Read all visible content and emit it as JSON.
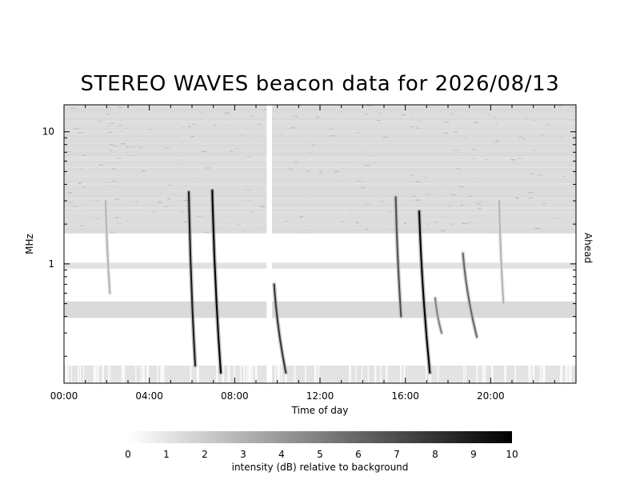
{
  "chart_data": {
    "type": "heatmap",
    "title": "STEREO WAVES beacon data for 2026/08/13",
    "xlabel": "Time of day",
    "ylabel": "MHz",
    "right_label": "Ahead",
    "right_label_color": "#cc0000",
    "x_unit": "hours",
    "xlim": [
      0,
      24
    ],
    "x_ticks": [
      {
        "value": 0,
        "label": "00:00"
      },
      {
        "value": 4,
        "label": "04:00"
      },
      {
        "value": 8,
        "label": "08:00"
      },
      {
        "value": 12,
        "label": "12:00"
      },
      {
        "value": 16,
        "label": "16:00"
      },
      {
        "value": 20,
        "label": "20:00"
      }
    ],
    "y_scale": "log",
    "ylim_mhz": [
      0.125,
      16
    ],
    "y_ticks": [
      {
        "value": 1,
        "label": "1"
      },
      {
        "value": 10,
        "label": "10"
      }
    ],
    "data_gap_hours": [
      9.5,
      9.75
    ],
    "background_bands": [
      {
        "f_low_mhz": 1.7,
        "f_high_mhz": 16,
        "intensity_db": 1.5
      },
      {
        "f_low_mhz": 0.92,
        "f_high_mhz": 1.02,
        "intensity_db": 1.3
      },
      {
        "f_low_mhz": 0.39,
        "f_high_mhz": 0.52,
        "intensity_db": 1.6
      },
      {
        "f_low_mhz": 0.125,
        "f_high_mhz": 0.17,
        "intensity_db": 1.2
      }
    ],
    "bursts": [
      {
        "t_start": 5.85,
        "f_start_mhz": 3.5,
        "t_end": 6.15,
        "f_end_mhz": 0.17,
        "peak_db": 9
      },
      {
        "t_start": 6.95,
        "f_start_mhz": 3.6,
        "t_end": 7.35,
        "f_end_mhz": 0.15,
        "peak_db": 10
      },
      {
        "t_start": 9.85,
        "f_start_mhz": 0.7,
        "t_end": 10.4,
        "f_end_mhz": 0.15,
        "peak_db": 8
      },
      {
        "t_start": 15.55,
        "f_start_mhz": 3.2,
        "t_end": 15.8,
        "f_end_mhz": 0.4,
        "peak_db": 7
      },
      {
        "t_start": 16.65,
        "f_start_mhz": 2.5,
        "t_end": 17.15,
        "f_end_mhz": 0.15,
        "peak_db": 10
      },
      {
        "t_start": 17.4,
        "f_start_mhz": 0.55,
        "t_end": 17.7,
        "f_end_mhz": 0.3,
        "peak_db": 5
      },
      {
        "t_start": 18.7,
        "f_start_mhz": 1.2,
        "t_end": 19.35,
        "f_end_mhz": 0.28,
        "peak_db": 6
      },
      {
        "t_start": 1.95,
        "f_start_mhz": 3.0,
        "t_end": 2.15,
        "f_end_mhz": 0.6,
        "peak_db": 3
      },
      {
        "t_start": 20.4,
        "f_start_mhz": 3.0,
        "t_end": 20.6,
        "f_end_mhz": 0.5,
        "peak_db": 3
      }
    ],
    "colorbar": {
      "label": "intensity (dB) relative to background",
      "min": 0,
      "max": 10,
      "ticks": [
        "0",
        "1",
        "2",
        "3",
        "4",
        "5",
        "6",
        "7",
        "8",
        "9",
        "10"
      ],
      "colormap": "white-to-black"
    },
    "colors": {
      "background": "#ffffff",
      "low": "#ffffff",
      "high": "#000000",
      "axis": "#000000"
    }
  }
}
